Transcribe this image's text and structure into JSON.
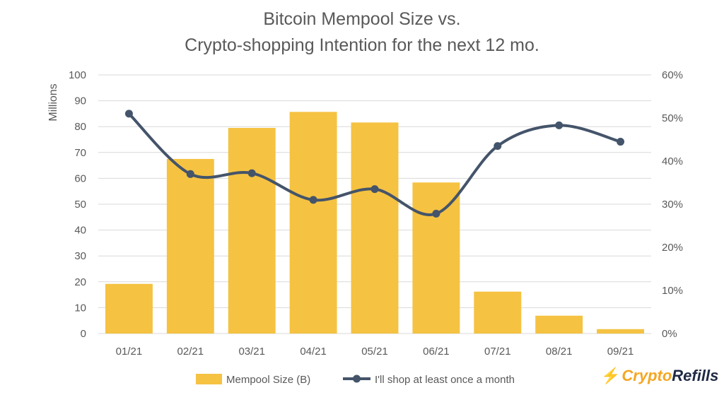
{
  "title_line1": "Bitcoin Mempool Size vs.",
  "title_line2": "Crypto-shopping Intention for the next 12 mo.",
  "brand": {
    "part1": "Crypto",
    "part2": "Refills"
  },
  "colors": {
    "bar": "#f5c242",
    "line": "#44546a",
    "grid": "#d9d9d9",
    "text": "#595959"
  },
  "chart_data": {
    "type": "bar+line",
    "categories": [
      "01/21",
      "02/21",
      "03/21",
      "04/21",
      "05/21",
      "06/21",
      "07/21",
      "08/21",
      "09/21"
    ],
    "series": [
      {
        "name": "Mempool Size (B)",
        "type": "bar",
        "axis": "left",
        "values": [
          19.2,
          67.5,
          79.5,
          85.7,
          81.6,
          58.4,
          16.2,
          6.9,
          1.7
        ]
      },
      {
        "name": "I'll shop at least once a month",
        "type": "line",
        "axis": "right",
        "values": [
          0.51,
          0.37,
          0.372,
          0.31,
          0.335,
          0.278,
          0.435,
          0.483,
          0.445
        ]
      }
    ],
    "ylabel": "Millions",
    "ylim": [
      0,
      100
    ],
    "yticks": [
      "100",
      "90",
      "80",
      "70",
      "60",
      "50",
      "40",
      "30",
      "20",
      "10",
      "0"
    ],
    "y2lim": [
      0,
      0.6
    ],
    "y2ticks": [
      "60%",
      "50%",
      "40%",
      "30%",
      "20%",
      "10%",
      "0%"
    ],
    "grid": true,
    "legend": "bottom"
  }
}
